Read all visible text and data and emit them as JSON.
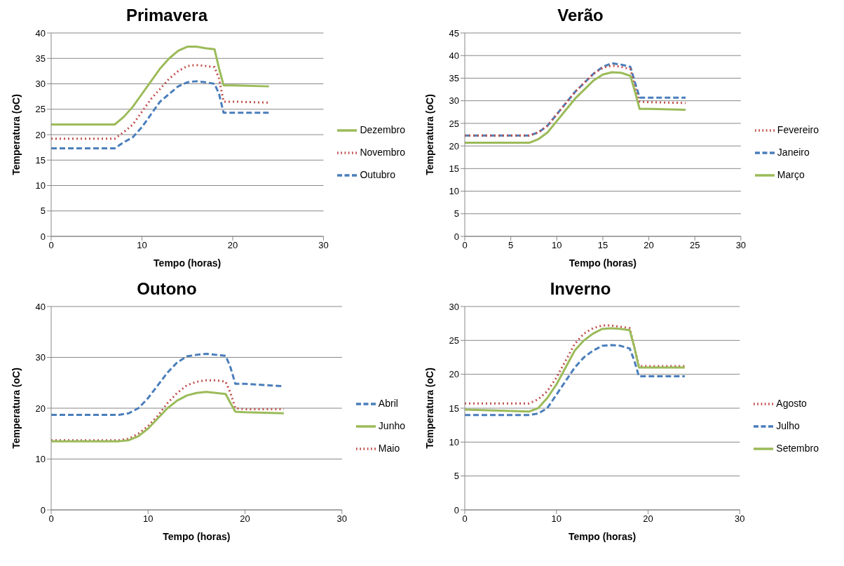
{
  "chart_data": [
    {
      "type": "line",
      "title": "Primavera",
      "xlabel": "Tempo (horas)",
      "ylabel": "Temperatura (oC)",
      "x": [
        0,
        7,
        8,
        9,
        10,
        11,
        12,
        13,
        14,
        15,
        16,
        17,
        18,
        18.5,
        19,
        20,
        24
      ],
      "xlim": [
        0,
        30
      ],
      "xticks": [
        0,
        10,
        20,
        30
      ],
      "ylim": [
        0,
        40
      ],
      "yticks": [
        0,
        5,
        10,
        15,
        20,
        25,
        30,
        35,
        40
      ],
      "grid": "y",
      "legend": "right",
      "marker": "none",
      "series": [
        {
          "name": "Outubro",
          "color": "#4a7ebb",
          "line_style": "dashed",
          "values": [
            17.3,
            17.3,
            18.5,
            19.5,
            21.5,
            24,
            26.5,
            28,
            29.5,
            30.3,
            30.5,
            30.3,
            30,
            28,
            24.3,
            24.3,
            24.3
          ]
        },
        {
          "name": "Novembro",
          "color": "#c0504d",
          "line_style": "dotted",
          "values": [
            19.2,
            19.2,
            20.5,
            22,
            24.5,
            27,
            29,
            31,
            32.5,
            33.5,
            33.7,
            33.5,
            33.3,
            31,
            26.5,
            26.5,
            26.3
          ]
        },
        {
          "name": "Dezembro",
          "color": "#9bbb59",
          "line_style": "solid",
          "values": [
            22,
            22,
            23.5,
            25.5,
            28,
            30.5,
            33,
            35,
            36.5,
            37.3,
            37.3,
            37,
            36.8,
            33,
            29.7,
            29.7,
            29.5
          ]
        }
      ]
    },
    {
      "type": "line",
      "title": "Verão",
      "xlabel": "Tempo (horas)",
      "ylabel": "Temperatura (oC)",
      "x": [
        0,
        7,
        8,
        9,
        10,
        11,
        12,
        13,
        14,
        15,
        16,
        17,
        18,
        18.5,
        19,
        20,
        24
      ],
      "xlim": [
        0,
        30
      ],
      "xticks": [
        0,
        5,
        10,
        15,
        20,
        25,
        30
      ],
      "ylim": [
        0,
        45
      ],
      "yticks": [
        0,
        5,
        10,
        15,
        20,
        25,
        30,
        35,
        40,
        45
      ],
      "grid": "y",
      "legend": "right",
      "marker": "none",
      "series": [
        {
          "name": "Janeiro",
          "color": "#4a7ebb",
          "line_style": "dashed",
          "values": [
            22.3,
            22.3,
            23,
            24.5,
            27,
            29.5,
            32,
            34,
            36,
            37.5,
            38.3,
            38,
            37.5,
            34,
            30.7,
            30.7,
            30.7
          ]
        },
        {
          "name": "Fevereiro",
          "color": "#c0504d",
          "line_style": "dotted",
          "values": [
            22.3,
            22.3,
            23,
            24.5,
            27,
            29.5,
            32,
            34,
            36,
            37.3,
            37.8,
            37.5,
            37,
            33,
            29.8,
            29.7,
            29.5
          ]
        },
        {
          "name": "Março",
          "color": "#9bbb59",
          "line_style": "solid",
          "values": [
            20.7,
            20.7,
            21.5,
            23,
            25.5,
            28,
            30.5,
            32.5,
            34.5,
            35.8,
            36.3,
            36.2,
            35.5,
            32,
            28.2,
            28.2,
            28
          ]
        }
      ]
    },
    {
      "type": "line",
      "title": "Outono",
      "xlabel": "Tempo (horas)",
      "ylabel": "Temperatura (oC)",
      "x": [
        0,
        7,
        8,
        9,
        10,
        11,
        12,
        13,
        14,
        15,
        16,
        17,
        18,
        18.5,
        19,
        20,
        24
      ],
      "xlim": [
        0,
        30
      ],
      "xticks": [
        0,
        10,
        20,
        30
      ],
      "ylim": [
        0,
        40
      ],
      "yticks": [
        0,
        10,
        20,
        30,
        40
      ],
      "grid": "y",
      "legend": "right",
      "marker": "none",
      "series": [
        {
          "name": "Abril",
          "color": "#4a7ebb",
          "line_style": "dashed",
          "values": [
            18.7,
            18.7,
            19,
            20,
            22,
            24.5,
            27,
            29,
            30.2,
            30.5,
            30.7,
            30.5,
            30.3,
            28,
            24.8,
            24.8,
            24.3
          ]
        },
        {
          "name": "Maio",
          "color": "#c0504d",
          "line_style": "dotted",
          "values": [
            13.7,
            13.7,
            14,
            15,
            16.5,
            18.5,
            21,
            23,
            24.5,
            25.2,
            25.5,
            25.5,
            25.2,
            23,
            20,
            19.8,
            19.8
          ]
        },
        {
          "name": "Junho",
          "color": "#9bbb59",
          "line_style": "solid",
          "values": [
            13.5,
            13.5,
            13.7,
            14.5,
            16,
            18,
            20,
            21.5,
            22.5,
            23,
            23.2,
            23,
            22.8,
            21,
            19.3,
            19.2,
            19
          ]
        }
      ]
    },
    {
      "type": "line",
      "title": "Inverno",
      "xlabel": "Tempo (horas)",
      "ylabel": "Temperatura (oC)",
      "x": [
        0,
        7,
        8,
        9,
        10,
        11,
        12,
        13,
        14,
        15,
        16,
        17,
        18,
        18.5,
        19,
        20,
        24
      ],
      "xlim": [
        0,
        30
      ],
      "xticks": [
        0,
        10,
        20,
        30
      ],
      "ylim": [
        0,
        30
      ],
      "yticks": [
        0,
        5,
        10,
        15,
        20,
        25,
        30
      ],
      "grid": "y",
      "legend": "right",
      "marker": "none",
      "series": [
        {
          "name": "Julho",
          "color": "#4a7ebb",
          "line_style": "dashed",
          "values": [
            14,
            14,
            14.2,
            15,
            17,
            19,
            21,
            22.5,
            23.5,
            24.2,
            24.3,
            24.2,
            23.8,
            22,
            19.7,
            19.7,
            19.7
          ]
        },
        {
          "name": "Agosto",
          "color": "#c0504d",
          "line_style": "dotted",
          "values": [
            15.7,
            15.7,
            16.3,
            17.5,
            19.5,
            22,
            24.5,
            26,
            26.8,
            27.2,
            27.2,
            27,
            26.8,
            24,
            21.2,
            21.2,
            21.2
          ]
        },
        {
          "name": "Setembro",
          "color": "#9bbb59",
          "line_style": "solid",
          "values": [
            14.8,
            14.5,
            15,
            16.5,
            18.5,
            21,
            23.5,
            25,
            26,
            26.7,
            26.8,
            26.7,
            26.5,
            24,
            21,
            21,
            21
          ]
        }
      ]
    }
  ]
}
